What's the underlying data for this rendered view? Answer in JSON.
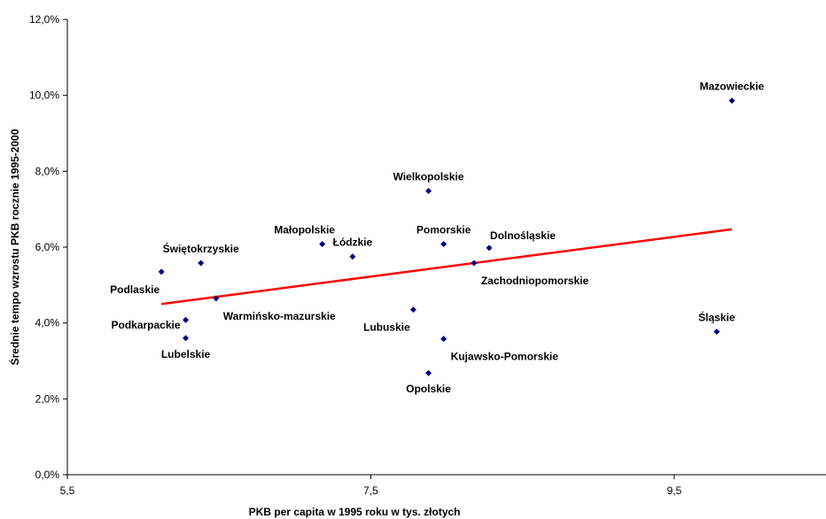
{
  "chart_data": {
    "type": "scatter",
    "xlabel": "PKB per capita w 1995 roku w tys. złotych",
    "ylabel": "Średnie tempo wzrostu PKB rocznie 1995-2000",
    "xlim": [
      5.5,
      10.5
    ],
    "ylim": [
      0,
      12
    ],
    "x_ticks": [
      "5,5",
      "7,5",
      "9,5"
    ],
    "x_tick_values": [
      5.5,
      7.5,
      9.5
    ],
    "y_ticks": [
      "0,0%",
      "2,0%",
      "4,0%",
      "6,0%",
      "8,0%",
      "10,0%",
      "12,0%"
    ],
    "y_tick_values": [
      0,
      2,
      4,
      6,
      8,
      10,
      12
    ],
    "grid": false,
    "colors": {
      "points": "#000080",
      "trendline": "#ff0000",
      "axis": "#000000"
    },
    "points": [
      {
        "label": "Mazowieckie",
        "x": 9.88,
        "y": 9.86,
        "label_pos": "above"
      },
      {
        "label": "Wielkopolskie",
        "x": 7.88,
        "y": 7.48,
        "label_pos": "above"
      },
      {
        "label": "Małopolskie",
        "x": 7.18,
        "y": 6.08,
        "label_pos": "above-left"
      },
      {
        "label": "Łódzkie",
        "x": 7.38,
        "y": 5.75,
        "label_pos": "above"
      },
      {
        "label": "Pomorskie",
        "x": 7.98,
        "y": 6.08,
        "label_pos": "above"
      },
      {
        "label": "Dolnośląskie",
        "x": 8.28,
        "y": 5.98,
        "label_pos": "above-right"
      },
      {
        "label": "Zachodniopomorskie",
        "x": 8.18,
        "y": 5.58,
        "label_pos": "below-right"
      },
      {
        "label": "Świętokrzyskie",
        "x": 6.38,
        "y": 5.58,
        "label_pos": "above"
      },
      {
        "label": "Podlaskie",
        "x": 6.12,
        "y": 5.35,
        "label_pos": "below-left"
      },
      {
        "label": "Warmińsko-mazurskie",
        "x": 6.48,
        "y": 4.65,
        "label_pos": "below-right"
      },
      {
        "label": "Podkarpackie",
        "x": 6.28,
        "y": 4.08,
        "label_pos": "left"
      },
      {
        "label": "Lubelskie",
        "x": 6.28,
        "y": 3.6,
        "label_pos": "below"
      },
      {
        "label": "Lubuskie",
        "x": 7.78,
        "y": 4.35,
        "label_pos": "below-left"
      },
      {
        "label": "Kujawsko-Pomorskie",
        "x": 7.98,
        "y": 3.58,
        "label_pos": "below-right"
      },
      {
        "label": "Opolskie",
        "x": 7.88,
        "y": 2.68,
        "label_pos": "below"
      },
      {
        "label": "Śląskie",
        "x": 9.78,
        "y": 3.77,
        "label_pos": "above"
      }
    ],
    "trendline": {
      "type": "linear",
      "x": [
        6.12,
        9.88
      ],
      "y": [
        4.5,
        6.47
      ]
    }
  }
}
